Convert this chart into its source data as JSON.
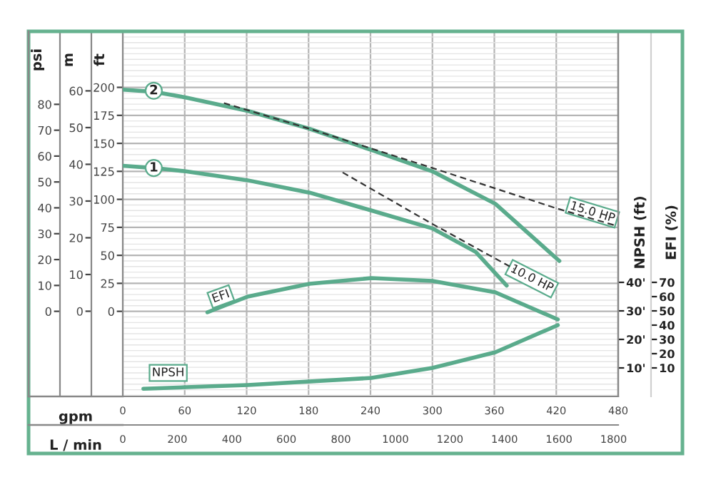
{
  "chart_data": [
    {
      "type": "line",
      "xlabel": "gpm",
      "x2label": "L / min",
      "ylabel": "ft",
      "y2label": "m",
      "y3label": "psi",
      "xlim": [
        0,
        480
      ],
      "xticks": [
        0,
        60,
        120,
        180,
        240,
        300,
        360,
        420,
        480
      ],
      "x2lim": [
        0,
        1817
      ],
      "x2ticks": [
        0,
        200,
        400,
        600,
        800,
        1000,
        1200,
        1400,
        1600,
        1800
      ],
      "ylim": [
        -76,
        250
      ],
      "yticks": [
        0,
        25,
        50,
        75,
        100,
        125,
        150,
        175,
        200
      ],
      "y2lim": [
        -23.2,
        76.2
      ],
      "y2ticks": [
        0,
        10,
        20,
        30,
        40,
        50,
        60
      ],
      "y3lim": [
        -32.9,
        108.2
      ],
      "y3ticks": [
        0,
        10,
        20,
        30,
        40,
        50,
        60,
        70,
        80
      ],
      "grid": true,
      "legend": false,
      "marker": "none",
      "series": [
        {
          "color": "#5aab8c",
          "x": [
            0,
            30,
            61,
            121,
            181,
            241,
            300,
            361,
            423
          ],
          "values": [
            198,
            196,
            191,
            179,
            163,
            144,
            125,
            96,
            45
          ]
        },
        {
          "color": "#5aab8c",
          "x": [
            0,
            30,
            61,
            121,
            181,
            241,
            300,
            342,
            372
          ],
          "values": [
            130,
            128,
            125,
            117,
            106,
            90,
            74,
            53,
            23
          ]
        },
        {
          "color": "#333333",
          "line_style": "dashed",
          "x": [
            98,
            181,
            300,
            420,
            476
          ],
          "values": [
            186,
            163,
            128,
            92,
            77
          ]
        },
        {
          "color": "#333333",
          "line_style": "dashed",
          "x": [
            213,
            300,
            379
          ],
          "values": [
            124,
            78,
            38
          ]
        }
      ],
      "annotations": [
        {
          "text": "2",
          "x": 30,
          "y": 197
        },
        {
          "text": "1",
          "x": 30,
          "y": 128
        },
        {
          "text": "15.0 HP",
          "x": 455,
          "y": 83
        },
        {
          "text": "10.0 HP",
          "x": 379,
          "y": 38
        }
      ]
    },
    {
      "type": "line",
      "ylabel": "EFI (%)",
      "y2label": "NPSH (ft)",
      "xlim": [
        0,
        480
      ],
      "tick_labels": "y",
      "legend": false,
      "marker": "none",
      "ylim": [
        -10,
        246
      ],
      "yticks": [
        10,
        20,
        30,
        40,
        50,
        60,
        70
      ],
      "y2lim": [
        0,
        128
      ],
      "y2ticks": [
        {
          "value": 10,
          "label": "10'"
        },
        {
          "value": 20,
          "label": "20'"
        },
        {
          "value": 30,
          "label": "30'"
        },
        {
          "value": 40,
          "label": "40'"
        }
      ],
      "series": [
        {
          "color": "#5aab8c",
          "x": [
            82,
            121,
            181,
            241,
            300,
            361,
            421.5
          ],
          "values": [
            49,
            60,
            69,
            73,
            71,
            63,
            44
          ]
        },
        {
          "color": "#5aab8c",
          "axis": "y2",
          "x": [
            20,
            121,
            241,
            300,
            361,
            421.5
          ],
          "values": [
            2.7,
            4,
            6.5,
            10,
            15.5,
            25
          ]
        }
      ],
      "annotations": [
        {
          "text": "EFI",
          "x": 95,
          "y": 60
        },
        {
          "text": "NPSH",
          "x": 44,
          "y": 6.5
        }
      ]
    }
  ]
}
